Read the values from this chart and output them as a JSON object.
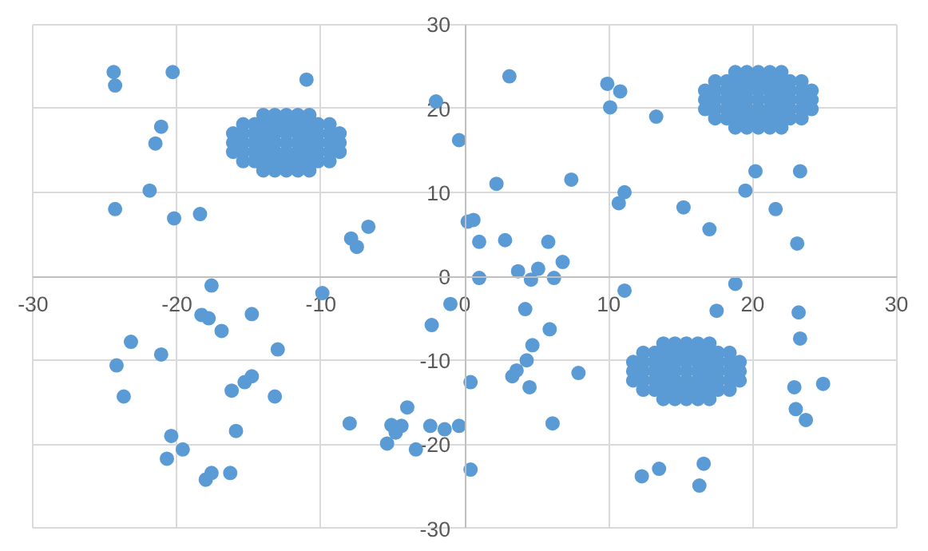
{
  "chart_data": {
    "type": "scatter",
    "xlim": [
      -30,
      30
    ],
    "ylim": [
      -30,
      30
    ],
    "xticks": [
      -30,
      -20,
      -10,
      0,
      10,
      20,
      30
    ],
    "yticks": [
      -30,
      -20,
      -10,
      0,
      10,
      20,
      30
    ],
    "grid": true,
    "marker": "circle",
    "series": [
      {
        "color": "#5b9bd5",
        "x": [
          -24.4,
          -24.3,
          -20.3,
          -11.0,
          -21.1,
          -21.5,
          -21.9,
          -24.3,
          -20.2,
          -18.4,
          -7.9,
          -7.5,
          -6.7,
          -2.0,
          -0.4,
          0.2,
          0.6,
          3.1,
          9.9,
          10.8,
          10.1,
          13.3,
          7.4,
          2.2,
          1.0,
          2.8,
          5.8,
          11.1,
          10.7,
          15.2,
          17.0,
          20.2,
          23.3,
          19.5,
          21.6,
          23.1,
          18.8,
          1.0,
          3.7,
          5.1,
          4.6,
          6.2,
          6.8,
          -17.6,
          -9.9,
          -1.0,
          -2.3,
          -18.3,
          -17.8,
          -14.8,
          -16.9,
          -23.2,
          -21.1,
          -24.2,
          -13.0,
          -23.7,
          -16.2,
          -15.3,
          -14.8,
          -13.2,
          -15.9,
          -20.4,
          -19.6,
          -20.7,
          -17.6,
          -18.0,
          -16.3,
          -8.0,
          -5.1,
          -4.4,
          -4.8,
          -4.0,
          -5.4,
          -3.4,
          -2.4,
          -1.4,
          -0.4,
          0.4,
          0.4,
          11.1,
          17.5,
          4.2,
          5.9,
          4.7,
          4.3,
          3.6,
          3.3,
          4.5,
          7.9,
          6.1,
          23.2,
          23.3,
          22.9,
          24.9,
          23.0,
          23.7,
          12.3,
          13.5,
          16.6,
          16.3,
          -14.0,
          -13.2,
          -12.4,
          -11.6,
          -10.8,
          -14.0,
          -13.2,
          -12.4,
          -11.6,
          -10.8,
          -15.4,
          -14.6,
          -13.9,
          -13.1,
          -12.4,
          -11.7,
          -10.9,
          -10.2,
          -9.4,
          -15.4,
          -14.6,
          -13.9,
          -13.1,
          -12.4,
          -11.7,
          -10.9,
          -10.2,
          -9.4,
          -16.1,
          -15.4,
          -14.6,
          -13.9,
          -13.2,
          -12.4,
          -11.6,
          -10.9,
          -10.2,
          -9.4,
          -8.7,
          -16.1,
          -15.4,
          -14.6,
          -13.9,
          -13.2,
          -12.4,
          -11.6,
          -10.9,
          -10.2,
          -9.4,
          -8.7,
          -16.1,
          -15.4,
          -14.6,
          -13.9,
          -13.2,
          -12.4,
          -11.6,
          -10.9,
          -10.2,
          -9.4,
          -8.7,
          18.8,
          19.6,
          20.4,
          21.2,
          22.0,
          18.8,
          19.6,
          20.4,
          21.2,
          22.0,
          17.4,
          18.2,
          18.9,
          19.7,
          20.4,
          21.1,
          21.9,
          22.6,
          23.4,
          17.4,
          18.2,
          18.9,
          19.7,
          20.4,
          21.1,
          21.9,
          22.6,
          23.4,
          16.7,
          17.4,
          18.2,
          18.9,
          19.6,
          20.4,
          21.2,
          21.9,
          22.6,
          23.4,
          24.1,
          16.7,
          17.4,
          18.2,
          18.9,
          19.6,
          20.4,
          21.2,
          21.9,
          22.6,
          23.4,
          24.1,
          16.7,
          17.4,
          18.2,
          18.9,
          19.6,
          20.4,
          21.2,
          21.9,
          22.6,
          23.4,
          24.1,
          13.8,
          14.6,
          15.4,
          16.2,
          17.0,
          13.8,
          14.6,
          15.4,
          16.2,
          17.0,
          12.4,
          13.2,
          13.9,
          14.7,
          15.4,
          16.1,
          16.9,
          17.6,
          18.4,
          12.4,
          13.2,
          13.9,
          14.7,
          15.4,
          16.1,
          16.9,
          17.6,
          18.4,
          11.7,
          12.4,
          13.2,
          13.9,
          14.6,
          15.4,
          16.2,
          16.9,
          17.6,
          18.4,
          19.1,
          11.7,
          12.4,
          13.2,
          13.9,
          14.6,
          15.4,
          16.2,
          16.9,
          17.6,
          18.4,
          19.1,
          11.7,
          12.4,
          13.2,
          13.9,
          14.6,
          15.4,
          16.2,
          16.9,
          17.6,
          18.4,
          19.1
        ],
        "values": [
          24.3,
          22.7,
          24.3,
          23.4,
          17.8,
          15.8,
          10.2,
          8.0,
          6.9,
          7.4,
          4.5,
          3.5,
          5.9,
          20.8,
          16.2,
          6.5,
          6.7,
          23.8,
          22.9,
          22.0,
          20.1,
          19.0,
          11.5,
          11.0,
          4.1,
          4.3,
          4.1,
          10.0,
          8.7,
          8.2,
          5.6,
          12.5,
          12.5,
          10.2,
          8.0,
          3.9,
          -0.9,
          -0.2,
          0.6,
          0.9,
          -0.4,
          -0.2,
          1.7,
          -1.1,
          -2.0,
          -3.3,
          -5.8,
          -4.6,
          -5.0,
          -4.5,
          -6.5,
          -7.8,
          -9.3,
          -10.6,
          -8.7,
          -14.3,
          -13.6,
          -12.6,
          -11.9,
          -14.3,
          -18.4,
          -19.0,
          -20.6,
          -21.7,
          -23.4,
          -24.2,
          -23.4,
          -17.5,
          -17.7,
          -17.8,
          -18.6,
          -15.6,
          -19.9,
          -20.6,
          -17.8,
          -18.2,
          -17.8,
          -12.6,
          -23.0,
          -1.7,
          -4.1,
          -3.9,
          -6.3,
          -8.2,
          -10.0,
          -11.2,
          -11.9,
          -13.2,
          -11.5,
          -17.5,
          -4.3,
          -7.4,
          -13.2,
          -12.8,
          -15.8,
          -17.1,
          -23.8,
          -22.9,
          -22.3,
          -24.9,
          19.2,
          19.2,
          19.2,
          19.2,
          19.2,
          12.6,
          12.6,
          12.6,
          12.6,
          12.6,
          18.1,
          18.1,
          18.1,
          18.1,
          18.1,
          18.1,
          18.1,
          18.1,
          18.1,
          13.7,
          13.7,
          13.7,
          13.7,
          13.7,
          13.7,
          13.7,
          13.7,
          13.7,
          17.0,
          17.0,
          17.0,
          17.0,
          17.0,
          17.0,
          17.0,
          17.0,
          17.0,
          17.0,
          17.0,
          15.9,
          15.9,
          15.9,
          15.9,
          15.9,
          15.9,
          15.9,
          15.9,
          15.9,
          15.9,
          15.9,
          14.8,
          14.8,
          14.8,
          14.8,
          14.8,
          14.8,
          14.8,
          14.8,
          14.8,
          14.8,
          14.8,
          24.3,
          24.3,
          24.3,
          24.3,
          24.3,
          17.7,
          17.7,
          17.7,
          17.7,
          17.7,
          23.2,
          23.2,
          23.2,
          23.2,
          23.2,
          23.2,
          23.2,
          23.2,
          23.2,
          18.8,
          18.8,
          18.8,
          18.8,
          18.8,
          18.8,
          18.8,
          18.8,
          18.8,
          22.1,
          22.1,
          22.1,
          22.1,
          22.1,
          22.1,
          22.1,
          22.1,
          22.1,
          22.1,
          22.1,
          21.0,
          21.0,
          21.0,
          21.0,
          21.0,
          21.0,
          21.0,
          21.0,
          21.0,
          21.0,
          21.0,
          19.9,
          19.9,
          19.9,
          19.9,
          19.9,
          19.9,
          19.9,
          19.9,
          19.9,
          19.9,
          19.9,
          -8.0,
          -8.0,
          -8.0,
          -8.0,
          -8.0,
          -14.6,
          -14.6,
          -14.6,
          -14.6,
          -14.6,
          -9.1,
          -9.1,
          -9.1,
          -9.1,
          -9.1,
          -9.1,
          -9.1,
          -9.1,
          -9.1,
          -13.5,
          -13.5,
          -13.5,
          -13.5,
          -13.5,
          -13.5,
          -13.5,
          -13.5,
          -13.5,
          -10.2,
          -10.2,
          -10.2,
          -10.2,
          -10.2,
          -10.2,
          -10.2,
          -10.2,
          -10.2,
          -10.2,
          -10.2,
          -11.3,
          -11.3,
          -11.3,
          -11.3,
          -11.3,
          -11.3,
          -11.3,
          -11.3,
          -11.3,
          -11.3,
          -11.3,
          -12.4,
          -12.4,
          -12.4,
          -12.4,
          -12.4,
          -12.4,
          -12.4,
          -12.4,
          -12.4,
          -12.4,
          -12.4
        ]
      }
    ]
  }
}
